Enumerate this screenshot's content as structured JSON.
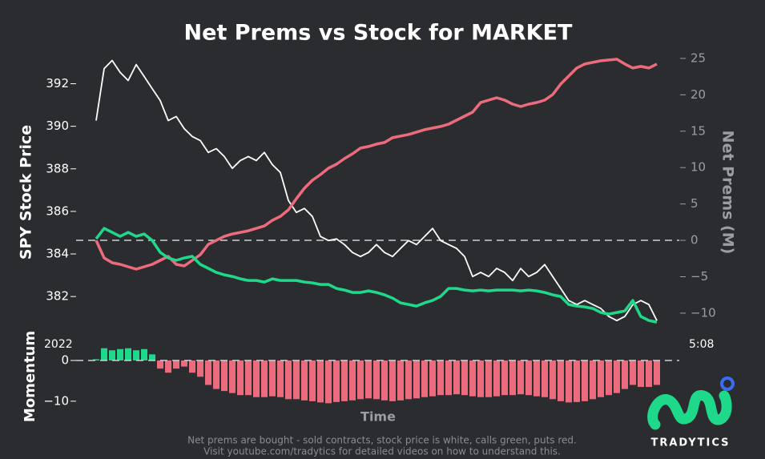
{
  "chart_data": [
    {
      "type": "line",
      "title": "Net Prems vs Stock for MARKET",
      "ylabel": "SPY Stock Price",
      "y2label": "Net Prems (M)",
      "ylim": [
        380.5,
        393.6
      ],
      "yticks": [
        382,
        384,
        386,
        388,
        390,
        392
      ],
      "y2lim": [
        -12.1,
        26.2
      ],
      "y2ticks": [
        {
          "value": -10,
          "label": "−10"
        },
        {
          "value": -5,
          "label": "−5"
        },
        0,
        5,
        10,
        15,
        20,
        25
      ],
      "y2_zero_line": true,
      "series": [
        {
          "name": "SPY",
          "color": "#ffffff",
          "axis": "y",
          "values": [
            390.27,
            392.71,
            393.09,
            392.53,
            392.15,
            392.9,
            392.34,
            391.77,
            391.21,
            390.27,
            390.46,
            389.89,
            389.52,
            389.33,
            388.77,
            388.95,
            388.58,
            388.02,
            388.39,
            388.58,
            388.39,
            388.77,
            388.2,
            387.83,
            386.51,
            385.95,
            386.14,
            385.76,
            384.82,
            384.63,
            384.71,
            384.44,
            384.07,
            383.88,
            384.07,
            384.44,
            384.07,
            383.88,
            384.26,
            384.63,
            384.44,
            384.82,
            385.2,
            384.63,
            384.44,
            384.26,
            383.88,
            382.94,
            383.13,
            382.94,
            383.32,
            383.13,
            382.75,
            383.32,
            382.94,
            383.13,
            383.5,
            382.94,
            382.38,
            381.81,
            381.62,
            381.81,
            381.62,
            381.44,
            381.06,
            380.87,
            381.06,
            381.62,
            381.81,
            381.62,
            380.87
          ]
        },
        {
          "name": "Puts",
          "color": "#ec6b7d",
          "axis": "y2",
          "values": [
            0,
            -2.42,
            -3.08,
            -3.3,
            -3.63,
            -3.96,
            -3.63,
            -3.3,
            -2.75,
            -2.2,
            -3.3,
            -3.52,
            -2.75,
            -1.98,
            -0.55,
            0,
            0.55,
            0.88,
            1.1,
            1.32,
            1.65,
            1.98,
            2.75,
            3.3,
            4.19,
            5.73,
            7.16,
            8.26,
            9.03,
            9.91,
            10.46,
            11.23,
            11.89,
            12.67,
            12.89,
            13.22,
            13.44,
            14.1,
            14.32,
            14.54,
            14.87,
            15.2,
            15.42,
            15.64,
            15.97,
            16.52,
            17.07,
            17.62,
            18.94,
            19.27,
            19.6,
            19.27,
            18.72,
            18.39,
            18.72,
            18.94,
            19.27,
            20.04,
            21.48,
            22.58,
            23.68,
            24.23,
            24.45,
            24.67,
            24.78,
            24.89,
            24.23,
            23.68,
            23.9,
            23.68,
            24.23
          ]
        },
        {
          "name": "Calls",
          "color": "#1fd98a",
          "axis": "y2",
          "values": [
            0.22,
            1.65,
            1.1,
            0.55,
            1.1,
            0.55,
            0.88,
            0,
            -1.65,
            -2.42,
            -2.75,
            -2.42,
            -2.2,
            -3.3,
            -3.85,
            -4.41,
            -4.74,
            -4.96,
            -5.29,
            -5.51,
            -5.51,
            -5.73,
            -5.29,
            -5.51,
            -5.51,
            -5.51,
            -5.73,
            -5.84,
            -6.06,
            -6.06,
            -6.61,
            -6.83,
            -7.16,
            -7.16,
            -6.94,
            -7.16,
            -7.49,
            -7.93,
            -8.59,
            -8.81,
            -9.03,
            -8.59,
            -8.26,
            -7.71,
            -6.61,
            -6.61,
            -6.83,
            -6.94,
            -6.83,
            -6.94,
            -6.83,
            -6.83,
            -6.83,
            -6.94,
            -6.83,
            -6.94,
            -7.16,
            -7.49,
            -7.71,
            -8.81,
            -9.03,
            -9.14,
            -9.36,
            -9.91,
            -10.13,
            -9.91,
            -9.69,
            -8.26,
            -10.46,
            -11.01,
            -11.23
          ]
        }
      ]
    },
    {
      "type": "bar",
      "ylabel": "Momentum",
      "xlabel": "Time",
      "xtick_labels": [
        "2022",
        "5:08"
      ],
      "ylim": [
        -11.8,
        5.9
      ],
      "yticks": [
        0,
        {
          "value": -10,
          "label": "−10"
        }
      ],
      "zero_line": true,
      "pos_color": "#1fd98a",
      "neg_color": "#ec6b7d",
      "values": [
        0.3,
        3,
        2.5,
        2.8,
        3,
        2.5,
        2.8,
        1.5,
        -2,
        -3,
        -2,
        -1.5,
        -3,
        -4,
        -6,
        -7,
        -7.5,
        -8,
        -8.5,
        -8.5,
        -9,
        -9,
        -8.8,
        -9,
        -9.5,
        -9.5,
        -9.8,
        -10,
        -10.3,
        -10.5,
        -10.2,
        -10,
        -9.8,
        -9.5,
        -9.3,
        -9.5,
        -9.8,
        -10,
        -9.8,
        -9.5,
        -9.3,
        -9,
        -8.8,
        -8.5,
        -8.5,
        -8.3,
        -8.5,
        -8.8,
        -9,
        -9,
        -8.8,
        -8.5,
        -8.5,
        -8.3,
        -8.5,
        -8.8,
        -9,
        -9.5,
        -10,
        -10.3,
        -10.2,
        -10,
        -9.5,
        -9,
        -8.5,
        -8,
        -7,
        -6,
        -6.5,
        -6.5,
        -6
      ]
    }
  ],
  "footer": [
    "Net prems are bought - sold contracts, stock price is white, calls green, puts red.",
    "Visit youtube.com/tradytics for detailed videos on how to understand this."
  ],
  "logo": "TRADYTICS"
}
